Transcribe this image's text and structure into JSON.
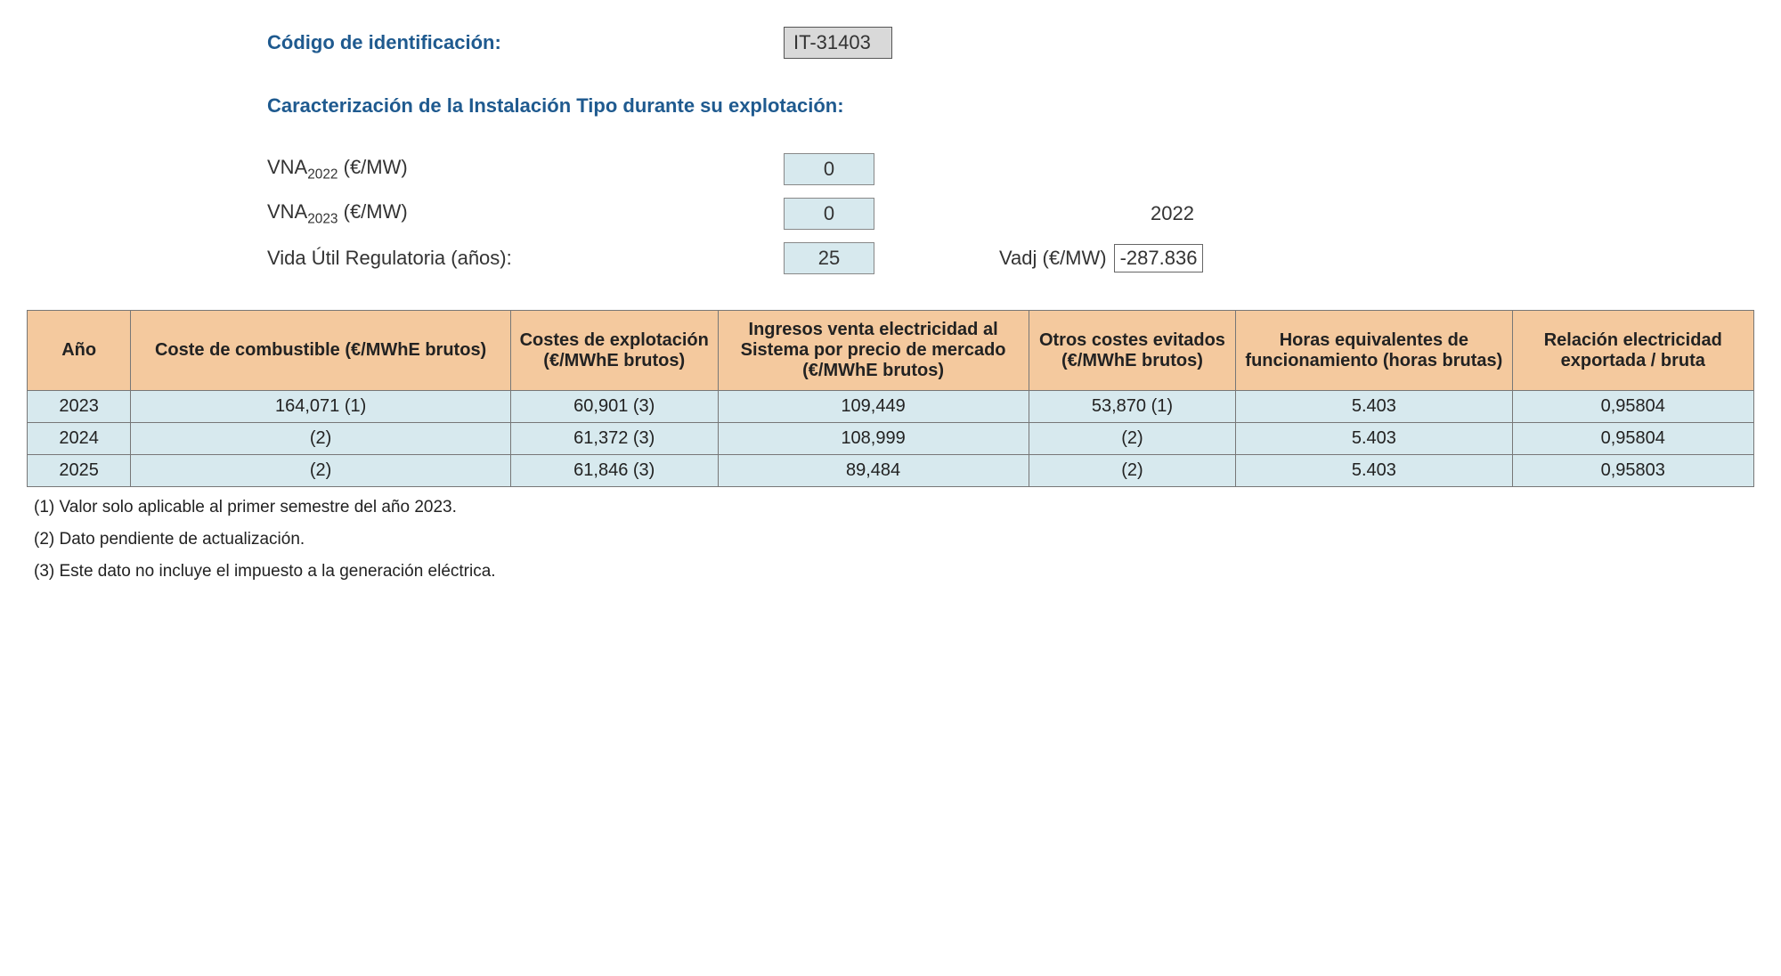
{
  "header": {
    "codigo_label": "Código de identificación:",
    "codigo_value": "IT-31403",
    "caracterizacion_title": "Caracterización de la Instalación Tipo durante su explotación:",
    "vna2022_label_plain": "VNA",
    "vna2022_sub": "2022",
    "vna2022_unit": " (€/MW)",
    "vna2022_value": "0",
    "vna2023_label_plain": "VNA",
    "vna2023_sub": "2023",
    "vna2023_unit": " (€/MW)",
    "vna2023_value": "0",
    "year_side": "2022",
    "vida_label": "Vida Útil Regulatoria (años):",
    "vida_value": "25",
    "vadj_label": "Vadj (€/MW)",
    "vadj_value": "-287.836"
  },
  "table": {
    "columns": [
      "Año",
      "Coste de combustible (€/MWhE brutos)",
      "Costes de explotación (€/MWhE brutos)",
      "Ingresos venta electricidad al Sistema por precio de mercado (€/MWhE brutos)",
      "Otros costes evitados (€/MWhE brutos)",
      "Horas equivalentes de funcionamiento (horas brutas)",
      "Relación electricidad exportada / bruta"
    ],
    "col_widths_pct": [
      6,
      22,
      12,
      18,
      12,
      16,
      14
    ],
    "rows": [
      [
        "2023",
        "164,071 (1)",
        "60,901 (3)",
        "109,449",
        "53,870 (1)",
        "5.403",
        "0,95804"
      ],
      [
        "2024",
        "(2)",
        "61,372 (3)",
        "108,999",
        "(2)",
        "5.403",
        "0,95804"
      ],
      [
        "2025",
        "(2)",
        "61,846 (3)",
        "89,484",
        "(2)",
        "5.403",
        "0,95803"
      ]
    ],
    "header_bg": "#f4c99e",
    "cell_bg": "#d7e9ee",
    "border_color": "#777777"
  },
  "footnotes": [
    "(1) Valor solo aplicable al primer semestre del año 2023.",
    "(2) Dato pendiente de actualización.",
    "(3) Este dato no incluye el impuesto a la generación eléctrica."
  ]
}
